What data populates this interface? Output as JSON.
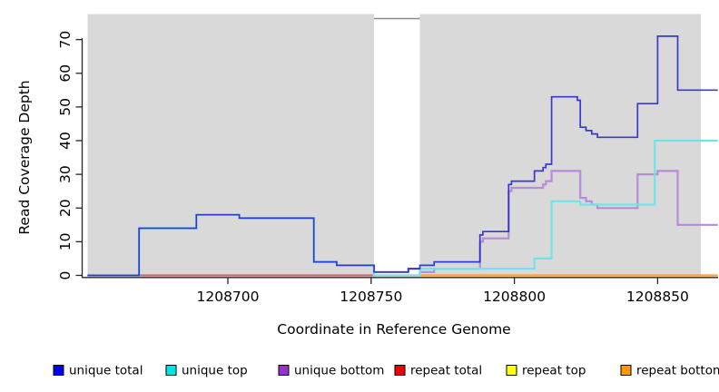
{
  "chart_data": {
    "type": "line",
    "style": "step",
    "title": "",
    "xlabel": "Coordinate in Reference Genome",
    "ylabel": "Read Coverage Depth",
    "panel_bg": "#d9d9d9",
    "grid": false,
    "x_range": [
      1208651,
      1208871
    ],
    "y_range": [
      0,
      75
    ],
    "x_ticks": [
      {
        "value": 1208700,
        "label": "1208700"
      },
      {
        "value": 1208750,
        "label": "1208750"
      },
      {
        "value": 1208800,
        "label": "1208800"
      },
      {
        "value": 1208850,
        "label": "1208850"
      }
    ],
    "y_ticks": [
      {
        "value": 0,
        "label": "0"
      },
      {
        "value": 10,
        "label": "10"
      },
      {
        "value": 20,
        "label": "20"
      },
      {
        "value": 30,
        "label": "30"
      },
      {
        "value": 40,
        "label": "40"
      },
      {
        "value": 50,
        "label": "50"
      },
      {
        "value": 60,
        "label": "60"
      },
      {
        "value": 70,
        "label": "70"
      }
    ],
    "mask_region": {
      "x_start": 1208751,
      "x_end": 1208767,
      "color": "#ffffff",
      "border_color": "#8a8a8a"
    },
    "legend_position": "bottom",
    "legend": [
      {
        "label": "unique total",
        "color": "#0000ee"
      },
      {
        "label": "unique top",
        "color": "#00e5e5"
      },
      {
        "label": "unique bottom",
        "color": "#9932cc"
      },
      {
        "label": "repeat total",
        "color": "#ee0000"
      },
      {
        "label": "repeat top",
        "color": "#ffff00"
      },
      {
        "label": "repeat bottom",
        "color": "#ff9900"
      }
    ],
    "series": [
      {
        "name": "unique total",
        "line_color": "#2222cc",
        "width": 1.7,
        "opacity": 0.88,
        "z": 6,
        "end": 1208871,
        "points": [
          [
            1208651,
            0
          ],
          [
            1208669,
            14
          ],
          [
            1208689,
            18
          ],
          [
            1208704,
            17
          ],
          [
            1208730,
            4
          ],
          [
            1208738,
            3
          ],
          [
            1208751,
            1
          ],
          [
            1208763,
            2
          ],
          [
            1208767,
            3
          ],
          [
            1208772,
            4
          ],
          [
            1208788,
            12
          ],
          [
            1208789,
            13
          ],
          [
            1208798,
            27
          ],
          [
            1208799,
            28
          ],
          [
            1208807,
            31
          ],
          [
            1208810,
            32
          ],
          [
            1208811,
            33
          ],
          [
            1208813,
            53
          ],
          [
            1208822,
            52
          ],
          [
            1208823,
            44
          ],
          [
            1208825,
            43
          ],
          [
            1208827,
            42
          ],
          [
            1208829,
            41
          ],
          [
            1208843,
            51
          ],
          [
            1208850,
            71
          ],
          [
            1208857,
            55
          ]
        ]
      },
      {
        "name": "unique top",
        "line_color": "#72e4e8",
        "width": 2.2,
        "opacity": 1,
        "z": 5,
        "end": 1208871,
        "points": [
          [
            1208651,
            0
          ],
          [
            1208669,
            14
          ],
          [
            1208689,
            18
          ],
          [
            1208704,
            17
          ],
          [
            1208730,
            4
          ],
          [
            1208738,
            3
          ],
          [
            1208751,
            0
          ],
          [
            1208767,
            2
          ],
          [
            1208807,
            5
          ],
          [
            1208813,
            22
          ],
          [
            1208823,
            21
          ],
          [
            1208849,
            40
          ]
        ]
      },
      {
        "name": "unique bottom",
        "line_color": "#b68bd8",
        "width": 2.2,
        "opacity": 1,
        "z": 3,
        "end": 1208871,
        "points": [
          [
            1208651,
            0
          ],
          [
            1208751,
            1
          ],
          [
            1208763,
            2
          ],
          [
            1208767,
            1
          ],
          [
            1208772,
            2
          ],
          [
            1208788,
            10
          ],
          [
            1208789,
            11
          ],
          [
            1208798,
            25
          ],
          [
            1208799,
            26
          ],
          [
            1208810,
            27
          ],
          [
            1208811,
            28
          ],
          [
            1208813,
            31
          ],
          [
            1208823,
            23
          ],
          [
            1208825,
            22
          ],
          [
            1208827,
            21
          ],
          [
            1208829,
            20
          ],
          [
            1208843,
            30
          ],
          [
            1208850,
            31
          ],
          [
            1208857,
            15
          ]
        ]
      },
      {
        "name": "repeat total",
        "line_color": "#d85f6a",
        "width": 1.8,
        "opacity": 1,
        "z": 4,
        "end": 1208751,
        "points": [
          [
            1208651,
            0
          ]
        ]
      },
      {
        "name": "repeat top",
        "line_color": "#ffee00",
        "width": 2.0,
        "opacity": 1,
        "z": 1,
        "end": 1208871,
        "points": [
          [
            1208651,
            0
          ]
        ]
      },
      {
        "name": "repeat bottom",
        "line_color": "#ff9d2e",
        "width": 2.2,
        "opacity": 1,
        "z": 2,
        "end": 1208871,
        "points": [
          [
            1208651,
            0
          ]
        ]
      }
    ]
  }
}
